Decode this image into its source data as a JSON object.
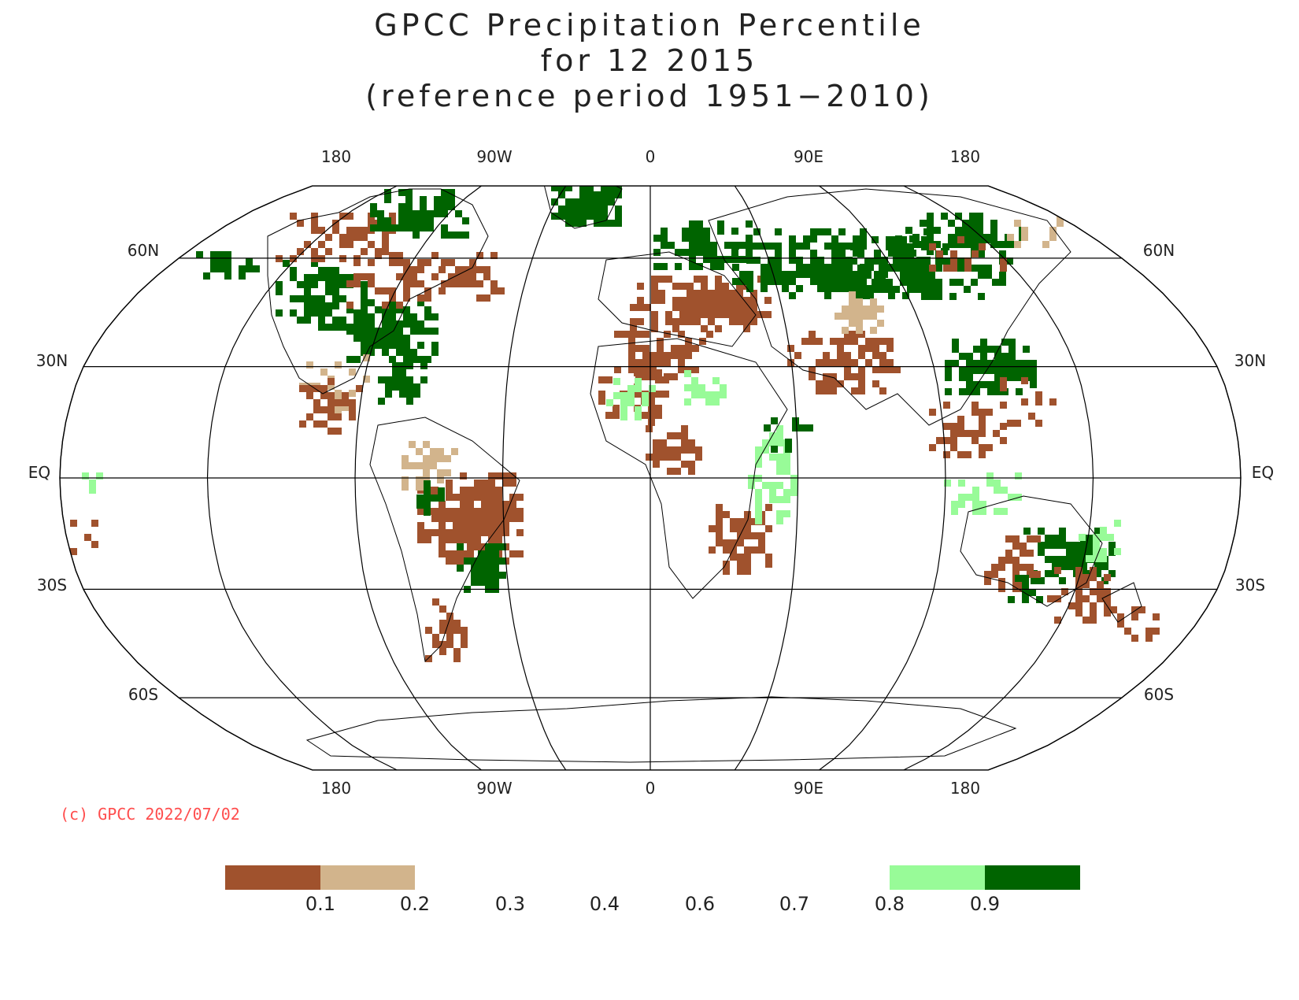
{
  "title": {
    "line1": "GPCC Precipitation Percentile",
    "line2": "for 12 2015",
    "line3": "(reference period 1951−2010)"
  },
  "copyright": "(c) GPCC 2022/07/02",
  "map": {
    "projection": "Robinson",
    "lon_labels_top": [
      "180",
      "90W",
      "0",
      "90E",
      "180"
    ],
    "lon_labels_bottom": [
      "180",
      "90W",
      "0",
      "90E",
      "180"
    ],
    "lat_labels": [
      "60N",
      "30N",
      "EQ",
      "30S",
      "60S"
    ],
    "colors": {
      "below_0_1": "#a0522d",
      "p0_1_to_0_2": "#d2b48c",
      "p0_8_to_0_9": "#98fb98",
      "above_0_9": "#006400"
    }
  },
  "colorbar": {
    "tick_labels": [
      "0.1",
      "0.2",
      "0.3",
      "0.4",
      "0.6",
      "0.7",
      "0.8",
      "0.9"
    ]
  }
}
